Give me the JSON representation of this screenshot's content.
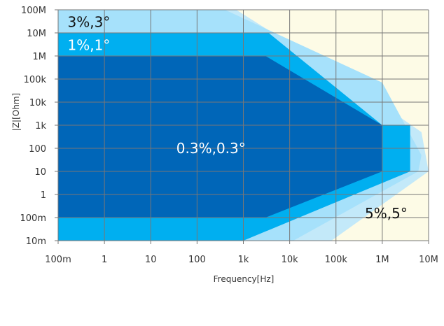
{
  "chart_data": {
    "type": "area",
    "xlabel": "Frequency[Hz]",
    "ylabel": "|Z|[Ohm]",
    "x_scale": "log",
    "y_scale": "log",
    "xlim": [
      0.1,
      10000000
    ],
    "ylim": [
      0.01,
      100000000
    ],
    "grid": true,
    "x_ticks": [
      {
        "value": 0.1,
        "label": "100m"
      },
      {
        "value": 1,
        "label": "1"
      },
      {
        "value": 10,
        "label": "10"
      },
      {
        "value": 100,
        "label": "100"
      },
      {
        "value": 1000,
        "label": "1k"
      },
      {
        "value": 10000,
        "label": "10k"
      },
      {
        "value": 100000,
        "label": "100k"
      },
      {
        "value": 1000000,
        "label": "1M"
      },
      {
        "value": 10000000,
        "label": "10M"
      }
    ],
    "y_ticks": [
      {
        "value": 100000000,
        "label": "100M"
      },
      {
        "value": 10000000,
        "label": "10M"
      },
      {
        "value": 1000000,
        "label": "1M"
      },
      {
        "value": 100000,
        "label": "100k"
      },
      {
        "value": 10000,
        "label": "10k"
      },
      {
        "value": 1000,
        "label": "1k"
      },
      {
        "value": 100,
        "label": "100"
      },
      {
        "value": 10,
        "label": "10"
      },
      {
        "value": 1,
        "label": "1"
      },
      {
        "value": 0.1,
        "label": "100m"
      },
      {
        "value": 0.01,
        "label": "10m"
      }
    ],
    "background_color": "#fdfbe6",
    "regions": [
      {
        "name": "5%,5°",
        "color": "#fdfbe6",
        "label_color": "#111111",
        "label_at": [
          3500000,
          0.15
        ],
        "label_anchor": "end",
        "polygon": []
      },
      {
        "name": "",
        "color": "#c3e9f9",
        "polygon": [
          [
            0.1,
            100000000
          ],
          [
            700,
            100000000
          ],
          [
            120000,
            150000
          ],
          [
            7000000,
            500
          ],
          [
            10000000,
            10
          ],
          [
            80000,
            0.01
          ],
          [
            0.1,
            0.01
          ]
        ]
      },
      {
        "name": "3%,3°",
        "color": "#a6e1fb",
        "label_color": "#111111",
        "label_at": [
          0.16,
          30000000
        ],
        "label_anchor": "start",
        "polygon": [
          [
            0.1,
            100000000
          ],
          [
            400,
            100000000
          ],
          [
            1000000,
            70000
          ],
          [
            7000000,
            50
          ],
          [
            6000000,
            10
          ],
          [
            12000,
            0.01
          ],
          [
            0.1,
            0.01
          ]
        ]
      },
      {
        "name": "1%,1°",
        "color": "#00aff0",
        "label_color": "#ffffff",
        "label_at": [
          0.16,
          3000000
        ],
        "label_anchor": "start",
        "polygon": [
          [
            0.1,
            10000000
          ],
          [
            3500,
            10000000
          ],
          [
            1000000,
            1000
          ],
          [
            4000000,
            1000
          ],
          [
            4000000,
            10
          ],
          [
            1000,
            0.01
          ],
          [
            0.1,
            0.01
          ]
        ]
      },
      {
        "name": "0.3%,0.3°",
        "color": "#0066b8",
        "label_color": "#ffffff",
        "label_at": [
          200,
          100
        ],
        "label_anchor": "middle",
        "polygon": [
          [
            0.1,
            1000000
          ],
          [
            3000,
            1000000
          ],
          [
            1000000,
            1000
          ],
          [
            1000000,
            10
          ],
          [
            3000,
            0.1
          ],
          [
            0.1,
            0.1
          ]
        ]
      }
    ]
  }
}
